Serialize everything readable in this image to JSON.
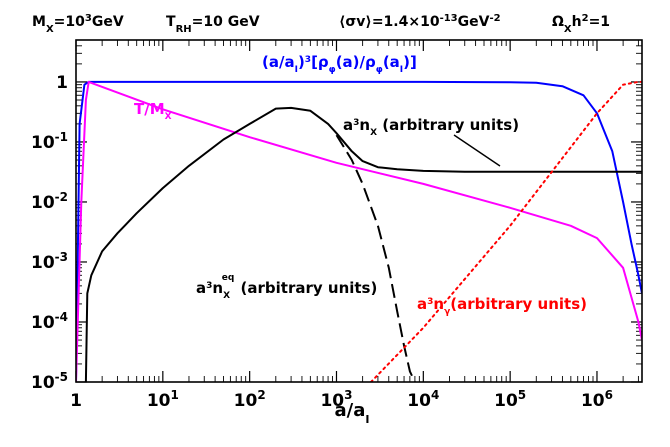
{
  "header": {
    "mx": "M_X=10^3GeV",
    "trh": "T_RH=10 GeV",
    "sigmav": "⟨σv⟩=1.4×10^-13GeV^-2",
    "omega": "Ω_Xh^2=1"
  },
  "chart_data": {
    "type": "line",
    "title": "",
    "xlabel": "a/a_I",
    "ylabel": "",
    "xscale": "log",
    "yscale": "log",
    "xlim": [
      1,
      3300000
    ],
    "ylim": [
      1e-05,
      5
    ],
    "grid": false,
    "x_ticks": [
      {
        "value": 1,
        "label": "1"
      },
      {
        "value": 10,
        "label": "10^1"
      },
      {
        "value": 100,
        "label": "10^2"
      },
      {
        "value": 1000,
        "label": "10^3"
      },
      {
        "value": 10000,
        "label": "10^4"
      },
      {
        "value": 100000,
        "label": "10^5"
      },
      {
        "value": 1000000,
        "label": "10^6"
      }
    ],
    "y_ticks": [
      {
        "value": 1,
        "label": "1"
      },
      {
        "value": 0.1,
        "label": "10^-1"
      },
      {
        "value": 0.01,
        "label": "10^-2"
      },
      {
        "value": 0.001,
        "label": "10^-3"
      },
      {
        "value": 0.0001,
        "label": "10^-4"
      },
      {
        "value": 1e-05,
        "label": "10^-5"
      }
    ],
    "series": [
      {
        "name": "(a/a_I)^3[ρ_φ(a)/ρ_φ(a_I)]",
        "color": "#0000ff",
        "style": "solid",
        "x": [
          1,
          1.1,
          1.25,
          1.4,
          10,
          100,
          1000,
          10000,
          100000,
          200000,
          400000,
          700000,
          1000000,
          1500000,
          2000000,
          2500000,
          3000000,
          3300000
        ],
        "y": [
          1e-05,
          0.2,
          0.9,
          1,
          1,
          1,
          1,
          1,
          0.99,
          0.97,
          0.85,
          0.6,
          0.3,
          0.07,
          0.01,
          0.002,
          0.0006,
          0.0003
        ]
      },
      {
        "name": "T/M_X",
        "color": "#ff00ff",
        "style": "solid",
        "x": [
          1,
          1.15,
          1.3,
          1.4,
          10,
          100,
          1000,
          10000,
          100000,
          500000,
          1000000,
          2000000,
          3000000,
          3300000
        ],
        "y": [
          1e-05,
          0.01,
          0.5,
          1,
          0.35,
          0.12,
          0.045,
          0.02,
          0.008,
          0.004,
          0.0025,
          0.0008,
          0.0001,
          5e-05
        ]
      },
      {
        "name": "a^3n_X (arbitrary units)",
        "color": "#000000",
        "style": "solid",
        "x": [
          1.3,
          1.35,
          1.5,
          2,
          3,
          5,
          10,
          20,
          50,
          100,
          200,
          300,
          500,
          800,
          1000,
          1500,
          2000,
          3000,
          5000,
          10000,
          30000,
          100000,
          1000000,
          3300000
        ],
        "y": [
          1e-05,
          0.0003,
          0.0006,
          0.0015,
          0.003,
          0.0065,
          0.017,
          0.04,
          0.11,
          0.2,
          0.36,
          0.37,
          0.33,
          0.2,
          0.14,
          0.07,
          0.048,
          0.038,
          0.035,
          0.033,
          0.032,
          0.032,
          0.032,
          0.032
        ]
      },
      {
        "name": "a^3n_X^eq (arbitrary units)",
        "color": "#000000",
        "style": "dashed",
        "x": [
          1000,
          1500,
          2000,
          3000,
          4000,
          5000,
          6000,
          7000,
          8000,
          8500
        ],
        "y": [
          0.13,
          0.05,
          0.02,
          0.004,
          0.0008,
          0.00015,
          4e-05,
          1.5e-05,
          1e-05,
          8e-06
        ]
      },
      {
        "name": "a^3n_γ(arbitrary units)",
        "color": "#ff0000",
        "style": "dotted",
        "x": [
          2500,
          10000,
          100000,
          1000000,
          2000000,
          3000000,
          3300000
        ],
        "y": [
          1e-05,
          8e-05,
          0.004,
          0.3,
          0.9,
          1,
          1
        ]
      }
    ],
    "annotations": [
      {
        "text": "(a/a_I)^3[ρ_φ(a)/ρ_φ(a_I)]",
        "color": "#0000ff"
      },
      {
        "text": "T/M_X",
        "color": "#ff00ff"
      },
      {
        "text": "a^3n_X (arbitrary units)",
        "color": "#000000"
      },
      {
        "text": "a^3n_X^eq (arbitrary units)",
        "color": "#000000"
      },
      {
        "text": "a^3n_γ(arbitrary units)",
        "color": "#ff0000"
      }
    ]
  }
}
